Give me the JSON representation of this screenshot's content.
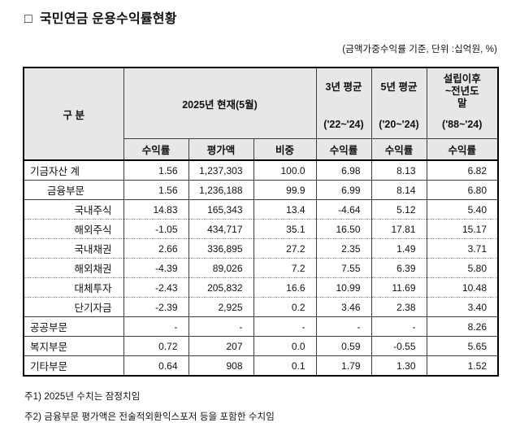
{
  "page": {
    "bullet": "□",
    "title": "국민연금 운용수익률현황",
    "unit_note": "(금액가중수익률 기준, 단위 :십억원, %)"
  },
  "table": {
    "header": {
      "category": "구 분",
      "current_period": "2025년 현재(5월)",
      "avg3": {
        "title": "3년 평균",
        "range": "('22~'24)"
      },
      "avg5": {
        "title": "5년 평균",
        "range": "('20~'24)"
      },
      "since": {
        "line1": "설립이후",
        "line2": "~전년도",
        "line3": "말",
        "range": "('88~'24)"
      },
      "sub": [
        "수익률",
        "평가액",
        "비중",
        "수익률",
        "수익률",
        "수익률"
      ]
    },
    "rows": [
      {
        "label": "기금자산 계",
        "indent": 0,
        "sep": "solid",
        "values": [
          "1.56",
          "1,237,303",
          "100.0",
          "6.98",
          "8.13",
          "6.82"
        ]
      },
      {
        "label": "금융부문",
        "indent": 1,
        "sep": "solid",
        "values": [
          "1.56",
          "1,236,188",
          "99.9",
          "6.99",
          "8.14",
          "6.80"
        ]
      },
      {
        "label": "국내주식",
        "indent": 2,
        "sep": "solid",
        "values": [
          "14.83",
          "165,343",
          "13.4",
          "-4.64",
          "5.12",
          "5.40"
        ]
      },
      {
        "label": "해외주식",
        "indent": 2,
        "sep": "dotted",
        "values": [
          "-1.05",
          "434,717",
          "35.1",
          "16.50",
          "17.81",
          "15.17"
        ]
      },
      {
        "label": "국내채권",
        "indent": 2,
        "sep": "dotted",
        "values": [
          "2.66",
          "336,895",
          "27.2",
          "2.35",
          "1.49",
          "3.71"
        ]
      },
      {
        "label": "해외채권",
        "indent": 2,
        "sep": "dotted",
        "values": [
          "-4.39",
          "89,026",
          "7.2",
          "7.55",
          "6.39",
          "5.80"
        ]
      },
      {
        "label": "대체투자",
        "indent": 2,
        "sep": "dotted",
        "values": [
          "-2.43",
          "205,832",
          "16.6",
          "10.99",
          "11.69",
          "10.48"
        ]
      },
      {
        "label": "단기자금",
        "indent": 2,
        "sep": "dotted",
        "values": [
          "-2.39",
          "2,925",
          "0.2",
          "3.46",
          "2.38",
          "3.40"
        ]
      },
      {
        "label": "공공부문",
        "indent": 0,
        "sep": "solid",
        "values": [
          "-",
          "-",
          "-",
          "-",
          "-",
          "8.26"
        ]
      },
      {
        "label": "복지부문",
        "indent": 0,
        "sep": "solid",
        "values": [
          "0.72",
          "207",
          "0.0",
          "0.59",
          "-0.55",
          "5.65"
        ]
      },
      {
        "label": "기타부문",
        "indent": 0,
        "sep": "solid",
        "values": [
          "0.64",
          "908",
          "0.1",
          "1.79",
          "1.30",
          "1.52"
        ]
      }
    ]
  },
  "notes": [
    "주1) 2025년 수치는 잠정치임",
    "주2) 금융부문 평가액은 전술적외환익스포저 등을 포함한 수치임"
  ],
  "colors": {
    "header_bg": "#e7e7e7",
    "grid": "#3f3f3f",
    "outer": "#000000",
    "dotted": "#9a9a9a",
    "text": "#111111"
  }
}
